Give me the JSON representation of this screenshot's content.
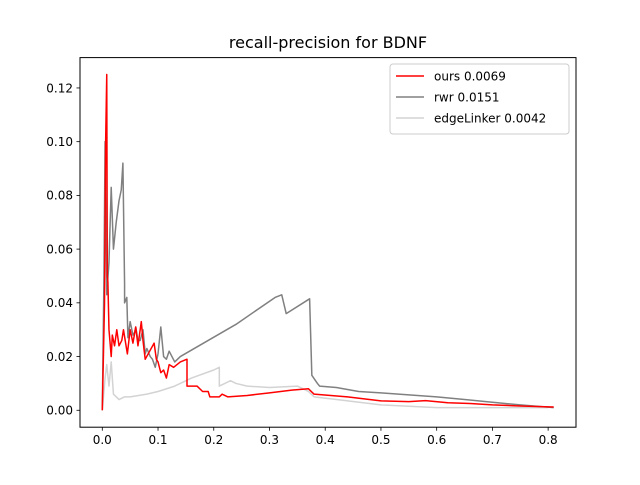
{
  "chart_data": {
    "type": "line",
    "title": "recall-precision for BDNF",
    "xlabel": "",
    "ylabel": "",
    "xlim": [
      -0.04,
      0.85
    ],
    "ylim": [
      -0.0063,
      0.1313
    ],
    "xticks": [
      0.0,
      0.1,
      0.2,
      0.3,
      0.4,
      0.5,
      0.6,
      0.7,
      0.8
    ],
    "xtick_labels": [
      "0.0",
      "0.1",
      "0.2",
      "0.3",
      "0.4",
      "0.5",
      "0.6",
      "0.7",
      "0.8"
    ],
    "yticks": [
      0.0,
      0.02,
      0.04,
      0.06,
      0.08,
      0.1,
      0.12
    ],
    "ytick_labels": [
      "0.00",
      "0.02",
      "0.04",
      "0.06",
      "0.08",
      "0.10",
      "0.12"
    ],
    "grid": false,
    "legend_position": "top-right",
    "series": [
      {
        "name": "ours 0.0069",
        "color": "#ff0000",
        "points": [
          [
            0.0,
            0.0
          ],
          [
            0.004,
            0.04
          ],
          [
            0.006,
            0.1
          ],
          [
            0.008,
            0.125
          ],
          [
            0.009,
            0.05
          ],
          [
            0.01,
            0.048
          ],
          [
            0.012,
            0.03
          ],
          [
            0.016,
            0.02
          ],
          [
            0.018,
            0.028
          ],
          [
            0.022,
            0.024
          ],
          [
            0.026,
            0.03
          ],
          [
            0.03,
            0.024
          ],
          [
            0.035,
            0.026
          ],
          [
            0.038,
            0.03
          ],
          [
            0.045,
            0.021
          ],
          [
            0.05,
            0.03
          ],
          [
            0.055,
            0.025
          ],
          [
            0.06,
            0.031
          ],
          [
            0.064,
            0.024
          ],
          [
            0.07,
            0.033
          ],
          [
            0.073,
            0.026
          ],
          [
            0.077,
            0.019
          ],
          [
            0.085,
            0.022
          ],
          [
            0.093,
            0.025
          ],
          [
            0.097,
            0.019
          ],
          [
            0.1,
            0.018
          ],
          [
            0.105,
            0.014
          ],
          [
            0.11,
            0.015
          ],
          [
            0.115,
            0.012
          ],
          [
            0.12,
            0.017
          ],
          [
            0.128,
            0.016
          ],
          [
            0.14,
            0.018
          ],
          [
            0.152,
            0.019
          ],
          [
            0.152,
            0.009
          ],
          [
            0.17,
            0.009
          ],
          [
            0.18,
            0.007
          ],
          [
            0.19,
            0.007
          ],
          [
            0.193,
            0.005
          ],
          [
            0.21,
            0.005
          ],
          [
            0.215,
            0.006
          ],
          [
            0.225,
            0.005
          ],
          [
            0.26,
            0.0055
          ],
          [
            0.3,
            0.0065
          ],
          [
            0.34,
            0.0075
          ],
          [
            0.37,
            0.008
          ],
          [
            0.38,
            0.006
          ],
          [
            0.44,
            0.005
          ],
          [
            0.5,
            0.0035
          ],
          [
            0.55,
            0.0032
          ],
          [
            0.58,
            0.0036
          ],
          [
            0.62,
            0.0028
          ],
          [
            0.66,
            0.0025
          ],
          [
            0.7,
            0.002
          ],
          [
            0.75,
            0.0016
          ],
          [
            0.81,
            0.0012
          ]
        ]
      },
      {
        "name": "rwr 0.0151",
        "color": "#808080",
        "points": [
          [
            0.0,
            0.0
          ],
          [
            0.003,
            0.05
          ],
          [
            0.005,
            0.1
          ],
          [
            0.008,
            0.043
          ],
          [
            0.012,
            0.055
          ],
          [
            0.016,
            0.083
          ],
          [
            0.02,
            0.06
          ],
          [
            0.025,
            0.07
          ],
          [
            0.03,
            0.078
          ],
          [
            0.034,
            0.082
          ],
          [
            0.037,
            0.092
          ],
          [
            0.04,
            0.047
          ],
          [
            0.04,
            0.04
          ],
          [
            0.044,
            0.042
          ],
          [
            0.046,
            0.027
          ],
          [
            0.05,
            0.033
          ],
          [
            0.055,
            0.028
          ],
          [
            0.058,
            0.029
          ],
          [
            0.06,
            0.031
          ],
          [
            0.064,
            0.026
          ],
          [
            0.068,
            0.026
          ],
          [
            0.073,
            0.03
          ],
          [
            0.077,
            0.021
          ],
          [
            0.08,
            0.023
          ],
          [
            0.086,
            0.02
          ],
          [
            0.09,
            0.019
          ],
          [
            0.095,
            0.016
          ],
          [
            0.1,
            0.021
          ],
          [
            0.105,
            0.031
          ],
          [
            0.11,
            0.02
          ],
          [
            0.115,
            0.019
          ],
          [
            0.12,
            0.022
          ],
          [
            0.13,
            0.018
          ],
          [
            0.14,
            0.02
          ],
          [
            0.24,
            0.032
          ],
          [
            0.31,
            0.042
          ],
          [
            0.322,
            0.043
          ],
          [
            0.33,
            0.036
          ],
          [
            0.372,
            0.0415
          ],
          [
            0.376,
            0.013
          ],
          [
            0.386,
            0.01
          ],
          [
            0.39,
            0.009
          ],
          [
            0.42,
            0.0085
          ],
          [
            0.46,
            0.007
          ],
          [
            0.5,
            0.0065
          ],
          [
            0.6,
            0.005
          ],
          [
            0.65,
            0.004
          ],
          [
            0.7,
            0.003
          ],
          [
            0.75,
            0.002
          ],
          [
            0.81,
            0.001
          ]
        ]
      },
      {
        "name": "edgeLinker 0.0042",
        "color": "#d3d3d3",
        "points": [
          [
            0.0,
            0.0
          ],
          [
            0.005,
            0.012
          ],
          [
            0.008,
            0.017
          ],
          [
            0.012,
            0.009
          ],
          [
            0.016,
            0.018
          ],
          [
            0.02,
            0.006
          ],
          [
            0.025,
            0.005
          ],
          [
            0.03,
            0.004
          ],
          [
            0.04,
            0.005
          ],
          [
            0.05,
            0.005
          ],
          [
            0.08,
            0.006
          ],
          [
            0.1,
            0.007
          ],
          [
            0.13,
            0.009
          ],
          [
            0.16,
            0.012
          ],
          [
            0.2,
            0.015
          ],
          [
            0.21,
            0.016
          ],
          [
            0.21,
            0.009
          ],
          [
            0.23,
            0.011
          ],
          [
            0.24,
            0.01
          ],
          [
            0.26,
            0.009
          ],
          [
            0.3,
            0.0085
          ],
          [
            0.35,
            0.009
          ],
          [
            0.37,
            0.007
          ],
          [
            0.38,
            0.005
          ],
          [
            0.42,
            0.004
          ],
          [
            0.5,
            0.002
          ],
          [
            0.6,
            0.001
          ],
          [
            0.7,
            0.001
          ],
          [
            0.8,
            0.001
          ]
        ]
      }
    ]
  }
}
